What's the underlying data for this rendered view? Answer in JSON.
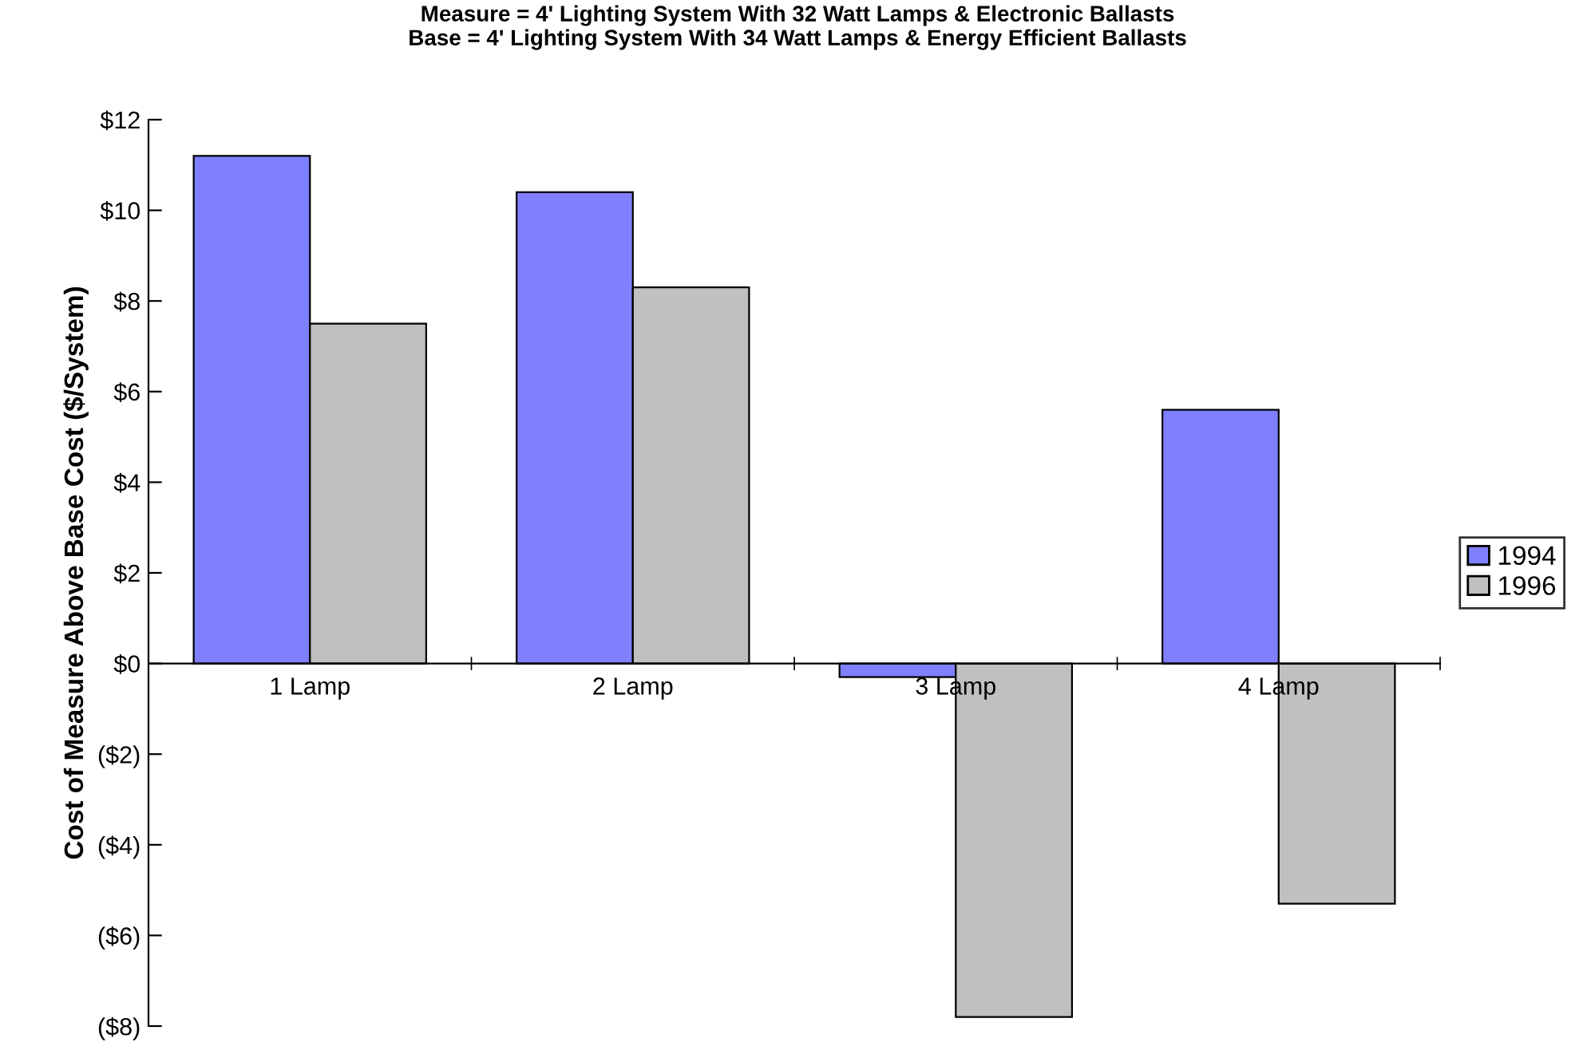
{
  "chart_data": {
    "type": "bar",
    "title": "Measure = 4' Lighting System With 32 Watt Lamps & Electronic Ballasts\nBase = 4' Lighting System With 34 Watt Lamps & Energy Efficient Ballasts",
    "ylabel": "Cost of Measure Above Base Cost ($/System)",
    "categories": [
      "1 Lamp",
      "2 Lamp",
      "3 Lamp",
      "4 Lamp"
    ],
    "series": [
      {
        "name": "1994",
        "color": "#8080ff",
        "values": [
          11.2,
          10.4,
          -0.3,
          5.6
        ]
      },
      {
        "name": "1996",
        "color": "#c0c0c0",
        "values": [
          7.5,
          8.3,
          -7.8,
          -5.3
        ]
      }
    ],
    "ylim": [
      -8,
      12
    ],
    "yticks": [
      {
        "value": -8,
        "label": "($8)"
      },
      {
        "value": -6,
        "label": "($6)"
      },
      {
        "value": -4,
        "label": "($4)"
      },
      {
        "value": -2,
        "label": "($2)"
      },
      {
        "value": 0,
        "label": "$0"
      },
      {
        "value": 2,
        "label": "$2"
      },
      {
        "value": 4,
        "label": "$4"
      },
      {
        "value": 6,
        "label": "$6"
      },
      {
        "value": 8,
        "label": "$8"
      },
      {
        "value": 10,
        "label": "$10"
      },
      {
        "value": 12,
        "label": "$12"
      }
    ],
    "grid": false,
    "legend": "right"
  }
}
